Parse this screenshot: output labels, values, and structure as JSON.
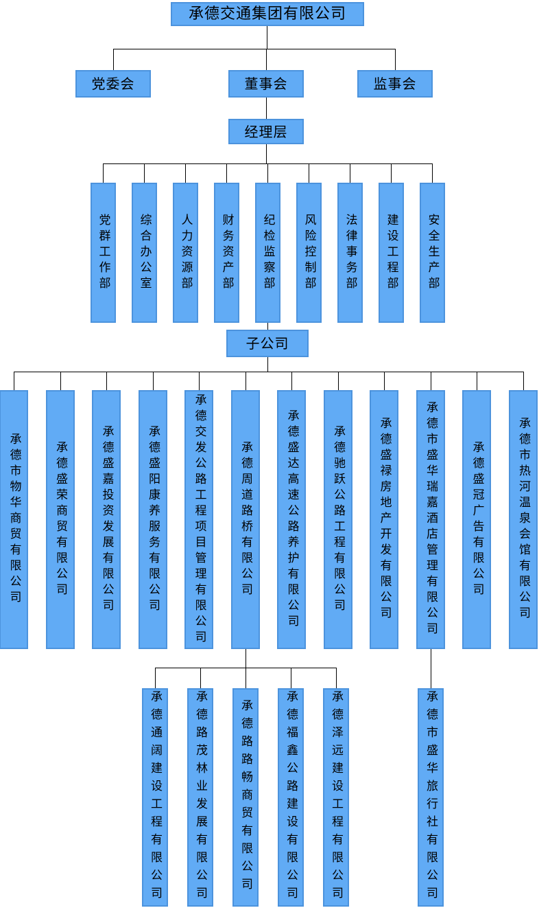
{
  "org_chart": {
    "root": "承德交通集团有限公司",
    "governance": [
      "党委会",
      "董事会",
      "监事会"
    ],
    "management": "经理层",
    "departments": [
      "党群工作部",
      "综合办公室",
      "人力资源部",
      "财务资产部",
      "纪检监察部",
      "风险控制部",
      "法律事务部",
      "建设工程部",
      "安全生产部"
    ],
    "subsidiaries_label": "子公司",
    "subsidiaries": [
      "承德市物华商贸有限公司",
      "承德盛荣商贸有限公司",
      "承德盛嘉投资发展有限公司",
      "承德盛阳康养服务有限公司",
      "承德交发公路工程项目管理有限公司",
      "承德周道路桥有限公司",
      "承德盛达高速公路养护有限公司",
      "承德驰跃公路工程有限公司",
      "承德盛禄房地产开发有限公司",
      "承德市盛华瑞嘉酒店管理有限公司",
      "承德盛冠广告有限公司",
      "承德市热河温泉会馆有限公司"
    ],
    "roadbridge_children": [
      "承德通阔建设工程有限公司",
      "承德路茂林业发展有限公司",
      "承德路路畅商贸有限公司",
      "承德福鑫公路建设有限公司",
      "承德泽远建设工程有限公司"
    ],
    "hotel_child": "承德市盛华旅行社有限公司",
    "colors": {
      "box_fill": "#61ABF5",
      "box_border": "#4C93DD",
      "connector": "#000000",
      "text": "#000000",
      "background": "#FFFFFF"
    }
  }
}
